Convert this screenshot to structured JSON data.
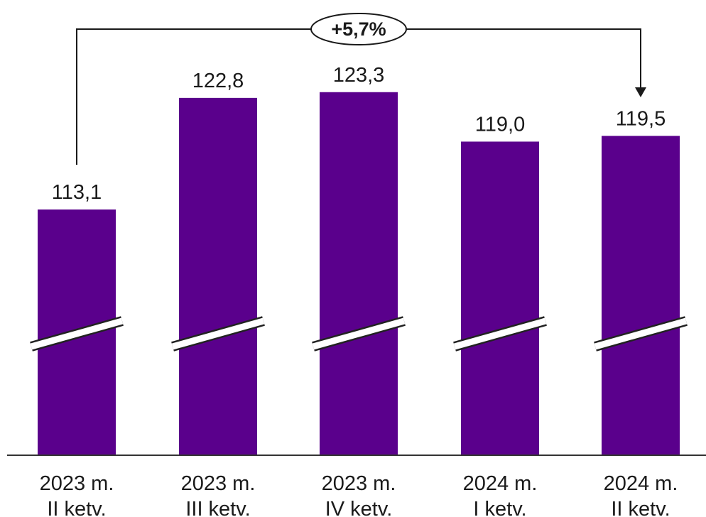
{
  "chart_data": {
    "type": "bar",
    "categories": [
      [
        "2023 m.",
        "II ketv."
      ],
      [
        "2023 m.",
        "III ketv."
      ],
      [
        "2023 m.",
        "IV ketv."
      ],
      [
        "2024 m.",
        "I ketv."
      ],
      [
        "2024 m.",
        "II ketv."
      ]
    ],
    "values": [
      113.1,
      122.8,
      123.3,
      119.0,
      119.5
    ],
    "value_labels": [
      "113,1",
      "122,8",
      "123,3",
      "119,0",
      "119,5"
    ],
    "axis_break": true,
    "grid": false,
    "legend": "none",
    "annotation": {
      "text": "+5,7%",
      "from_category_index": 0,
      "to_category_index": 4
    },
    "colors": {
      "bar": "#5a008c",
      "text": "#1a1a1a",
      "axis": "#333333"
    }
  }
}
